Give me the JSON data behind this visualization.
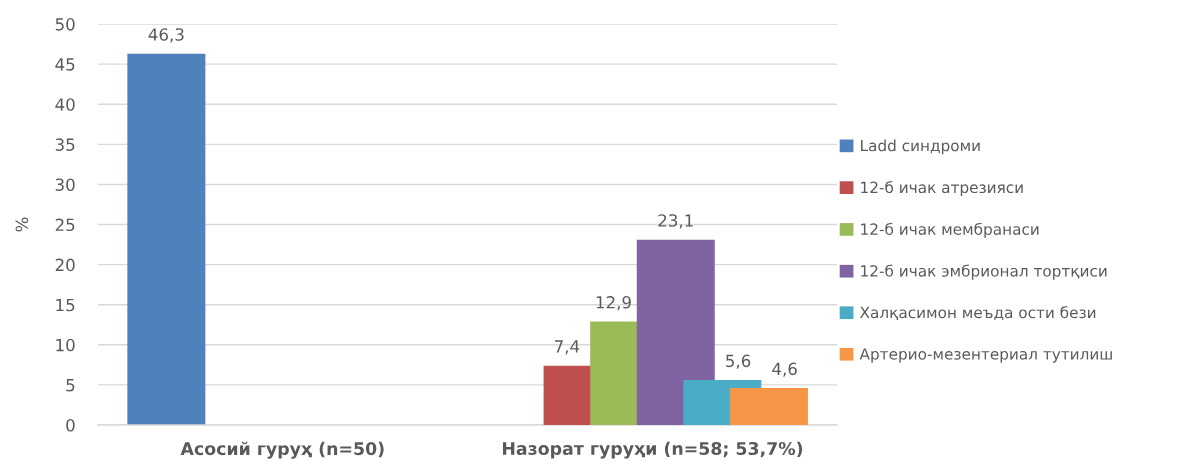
{
  "chart_data": {
    "type": "bar",
    "ylabel": "%",
    "categories": [
      "Асосий гуруҳ (n=50)",
      "Назорат гуруҳи (n=58; 53,7%)"
    ],
    "series": [
      {
        "name": "Ladd синдроми",
        "color": "#4f81bd",
        "values": [
          46.3,
          null
        ],
        "value_labels": [
          "46,3",
          null
        ]
      },
      {
        "name": "12-б ичак атрезияси",
        "color": "#c0504d",
        "values": [
          null,
          7.4
        ],
        "value_labels": [
          null,
          "7,4"
        ]
      },
      {
        "name": "12-б ичак мембранаси",
        "color": "#9bbb59",
        "values": [
          null,
          12.9
        ],
        "value_labels": [
          null,
          "12,9"
        ]
      },
      {
        "name": "12-б ичак эмбрионал тортқиси",
        "color": "#8064a2",
        "values": [
          null,
          23.1
        ],
        "value_labels": [
          null,
          "23,1"
        ]
      },
      {
        "name": "Халқасимон меъда ости бези",
        "color": "#4bacc6",
        "values": [
          null,
          5.6
        ],
        "value_labels": [
          null,
          "5,6"
        ]
      },
      {
        "name": "Артерио-мезентериал тутилиш",
        "color": "#f79646",
        "values": [
          null,
          4.6
        ],
        "value_labels": [
          null,
          "4,6"
        ]
      }
    ],
    "ylim": [
      0,
      50
    ],
    "yticks": [
      0,
      5,
      10,
      15,
      20,
      25,
      30,
      35,
      40,
      45,
      50
    ],
    "grid": "y",
    "legend": "right"
  }
}
